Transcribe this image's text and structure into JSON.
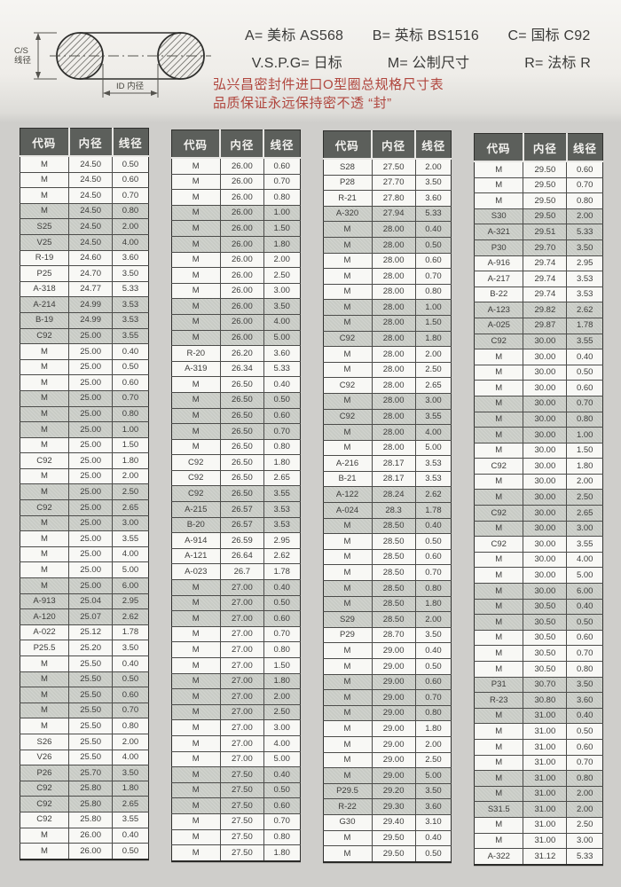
{
  "diagram": {
    "cs_label_line1": "C/S",
    "cs_label_line2": "线径",
    "id_label": "ID 内径"
  },
  "legend": {
    "items": [
      "A= 美标 AS568",
      "B= 英标 BS1516",
      "C= 国标 C92",
      "V.S.P.G= 日标",
      "M= 公制尺寸",
      "R= 法标 R"
    ]
  },
  "title": {
    "line1": "弘兴昌密封件进口O型圈总规格尺寸表",
    "line2": "品质保证永远保持密不透 “封”"
  },
  "colors": {
    "title_red": "#b0463e",
    "header_bg": "#5c5f5b",
    "shaded_row": "#c8cbc5"
  },
  "table": {
    "headers": [
      "代码",
      "内径",
      "线径"
    ],
    "columns": [
      {
        "rows": [
          [
            "M",
            "24.50",
            "0.50"
          ],
          [
            "M",
            "24.50",
            "0.60"
          ],
          [
            "M",
            "24.50",
            "0.70"
          ],
          [
            "M",
            "24.50",
            "0.80"
          ],
          [
            "S25",
            "24.50",
            "2.00"
          ],
          [
            "V25",
            "24.50",
            "4.00"
          ],
          [
            "R-19",
            "24.60",
            "3.60"
          ],
          [
            "P25",
            "24.70",
            "3.50"
          ],
          [
            "A-318",
            "24.77",
            "5.33"
          ],
          [
            "A-214",
            "24.99",
            "3.53"
          ],
          [
            "B-19",
            "24.99",
            "3.53"
          ],
          [
            "C92",
            "25.00",
            "3.55"
          ],
          [
            "M",
            "25.00",
            "0.40"
          ],
          [
            "M",
            "25.00",
            "0.50"
          ],
          [
            "M",
            "25.00",
            "0.60"
          ],
          [
            "M",
            "25.00",
            "0.70"
          ],
          [
            "M",
            "25.00",
            "0.80"
          ],
          [
            "M",
            "25.00",
            "1.00"
          ],
          [
            "M",
            "25.00",
            "1.50"
          ],
          [
            "C92",
            "25.00",
            "1.80"
          ],
          [
            "M",
            "25.00",
            "2.00"
          ],
          [
            "M",
            "25.00",
            "2.50"
          ],
          [
            "C92",
            "25.00",
            "2.65"
          ],
          [
            "M",
            "25.00",
            "3.00"
          ],
          [
            "M",
            "25.00",
            "3.55"
          ],
          [
            "M",
            "25.00",
            "4.00"
          ],
          [
            "M",
            "25.00",
            "5.00"
          ],
          [
            "M",
            "25.00",
            "6.00"
          ],
          [
            "A-913",
            "25.04",
            "2.95"
          ],
          [
            "A-120",
            "25.07",
            "2.62"
          ],
          [
            "A-022",
            "25.12",
            "1.78"
          ],
          [
            "P25.5",
            "25.20",
            "3.50"
          ],
          [
            "M",
            "25.50",
            "0.40"
          ],
          [
            "M",
            "25.50",
            "0.50"
          ],
          [
            "M",
            "25.50",
            "0.60"
          ],
          [
            "M",
            "25.50",
            "0.70"
          ],
          [
            "M",
            "25.50",
            "0.80"
          ],
          [
            "S26",
            "25.50",
            "2.00"
          ],
          [
            "V26",
            "25.50",
            "4.00"
          ],
          [
            "P26",
            "25.70",
            "3.50"
          ],
          [
            "C92",
            "25.80",
            "1.80"
          ],
          [
            "C92",
            "25.80",
            "2.65"
          ],
          [
            "C92",
            "25.80",
            "3.55"
          ],
          [
            "M",
            "26.00",
            "0.40"
          ],
          [
            "M",
            "26.00",
            "0.50"
          ]
        ]
      },
      {
        "rows": [
          [
            "M",
            "26.00",
            "0.60"
          ],
          [
            "M",
            "26.00",
            "0.70"
          ],
          [
            "M",
            "26.00",
            "0.80"
          ],
          [
            "M",
            "26.00",
            "1.00"
          ],
          [
            "M",
            "26.00",
            "1.50"
          ],
          [
            "M",
            "26.00",
            "1.80"
          ],
          [
            "M",
            "26.00",
            "2.00"
          ],
          [
            "M",
            "26.00",
            "2.50"
          ],
          [
            "M",
            "26.00",
            "3.00"
          ],
          [
            "M",
            "26.00",
            "3.50"
          ],
          [
            "M",
            "26.00",
            "4.00"
          ],
          [
            "M",
            "26.00",
            "5.00"
          ],
          [
            "R-20",
            "26.20",
            "3.60"
          ],
          [
            "A-319",
            "26.34",
            "5.33"
          ],
          [
            "M",
            "26.50",
            "0.40"
          ],
          [
            "M",
            "26.50",
            "0.50"
          ],
          [
            "M",
            "26.50",
            "0.60"
          ],
          [
            "M",
            "26.50",
            "0.70"
          ],
          [
            "M",
            "26.50",
            "0.80"
          ],
          [
            "C92",
            "26.50",
            "1.80"
          ],
          [
            "C92",
            "26.50",
            "2.65"
          ],
          [
            "C92",
            "26.50",
            "3.55"
          ],
          [
            "A-215",
            "26.57",
            "3.53"
          ],
          [
            "B-20",
            "26.57",
            "3.53"
          ],
          [
            "A-914",
            "26.59",
            "2.95"
          ],
          [
            "A-121",
            "26.64",
            "2.62"
          ],
          [
            "A-023",
            "26.7",
            "1.78"
          ],
          [
            "M",
            "27.00",
            "0.40"
          ],
          [
            "M",
            "27.00",
            "0.50"
          ],
          [
            "M",
            "27.00",
            "0.60"
          ],
          [
            "M",
            "27.00",
            "0.70"
          ],
          [
            "M",
            "27.00",
            "0.80"
          ],
          [
            "M",
            "27.00",
            "1.50"
          ],
          [
            "M",
            "27.00",
            "1.80"
          ],
          [
            "M",
            "27.00",
            "2.00"
          ],
          [
            "M",
            "27.00",
            "2.50"
          ],
          [
            "M",
            "27.00",
            "3.00"
          ],
          [
            "M",
            "27.00",
            "4.00"
          ],
          [
            "M",
            "27.00",
            "5.00"
          ],
          [
            "M",
            "27.50",
            "0.40"
          ],
          [
            "M",
            "27.50",
            "0.50"
          ],
          [
            "M",
            "27.50",
            "0.60"
          ],
          [
            "M",
            "27.50",
            "0.70"
          ],
          [
            "M",
            "27.50",
            "0.80"
          ],
          [
            "M",
            "27.50",
            "1.80"
          ]
        ]
      },
      {
        "rows": [
          [
            "S28",
            "27.50",
            "2.00"
          ],
          [
            "P28",
            "27.70",
            "3.50"
          ],
          [
            "R-21",
            "27.80",
            "3.60"
          ],
          [
            "A-320",
            "27.94",
            "5.33"
          ],
          [
            "M",
            "28.00",
            "0.40"
          ],
          [
            "M",
            "28.00",
            "0.50"
          ],
          [
            "M",
            "28.00",
            "0.60"
          ],
          [
            "M",
            "28.00",
            "0.70"
          ],
          [
            "M",
            "28.00",
            "0.80"
          ],
          [
            "M",
            "28.00",
            "1.00"
          ],
          [
            "M",
            "28.00",
            "1.50"
          ],
          [
            "C92",
            "28.00",
            "1.80"
          ],
          [
            "M",
            "28.00",
            "2.00"
          ],
          [
            "M",
            "28.00",
            "2.50"
          ],
          [
            "C92",
            "28.00",
            "2.65"
          ],
          [
            "M",
            "28.00",
            "3.00"
          ],
          [
            "C92",
            "28.00",
            "3.55"
          ],
          [
            "M",
            "28.00",
            "4.00"
          ],
          [
            "M",
            "28.00",
            "5.00"
          ],
          [
            "A-216",
            "28.17",
            "3.53"
          ],
          [
            "B-21",
            "28.17",
            "3.53"
          ],
          [
            "A-122",
            "28.24",
            "2.62"
          ],
          [
            "A-024",
            "28.3",
            "1.78"
          ],
          [
            "M",
            "28.50",
            "0.40"
          ],
          [
            "M",
            "28.50",
            "0.50"
          ],
          [
            "M",
            "28.50",
            "0.60"
          ],
          [
            "M",
            "28.50",
            "0.70"
          ],
          [
            "M",
            "28.50",
            "0.80"
          ],
          [
            "M",
            "28.50",
            "1.80"
          ],
          [
            "S29",
            "28.50",
            "2.00"
          ],
          [
            "P29",
            "28.70",
            "3.50"
          ],
          [
            "M",
            "29.00",
            "0.40"
          ],
          [
            "M",
            "29.00",
            "0.50"
          ],
          [
            "M",
            "29.00",
            "0.60"
          ],
          [
            "M",
            "29.00",
            "0.70"
          ],
          [
            "M",
            "29.00",
            "0.80"
          ],
          [
            "M",
            "29.00",
            "1.80"
          ],
          [
            "M",
            "29.00",
            "2.00"
          ],
          [
            "M",
            "29.00",
            "2.50"
          ],
          [
            "M",
            "29.00",
            "5.00"
          ],
          [
            "P29.5",
            "29.20",
            "3.50"
          ],
          [
            "R-22",
            "29.30",
            "3.60"
          ],
          [
            "G30",
            "29.40",
            "3.10"
          ],
          [
            "M",
            "29.50",
            "0.40"
          ],
          [
            "M",
            "29.50",
            "0.50"
          ]
        ]
      },
      {
        "rows": [
          [
            "M",
            "29.50",
            "0.60"
          ],
          [
            "M",
            "29.50",
            "0.70"
          ],
          [
            "M",
            "29.50",
            "0.80"
          ],
          [
            "S30",
            "29.50",
            "2.00"
          ],
          [
            "A-321",
            "29.51",
            "5.33"
          ],
          [
            "P30",
            "29.70",
            "3.50"
          ],
          [
            "A-916",
            "29.74",
            "2.95"
          ],
          [
            "A-217",
            "29.74",
            "3.53"
          ],
          [
            "B-22",
            "29.74",
            "3.53"
          ],
          [
            "A-123",
            "29.82",
            "2.62"
          ],
          [
            "A-025",
            "29.87",
            "1.78"
          ],
          [
            "C92",
            "30.00",
            "3.55"
          ],
          [
            "M",
            "30.00",
            "0.40"
          ],
          [
            "M",
            "30.00",
            "0.50"
          ],
          [
            "M",
            "30.00",
            "0.60"
          ],
          [
            "M",
            "30.00",
            "0.70"
          ],
          [
            "M",
            "30.00",
            "0.80"
          ],
          [
            "M",
            "30.00",
            "1.00"
          ],
          [
            "M",
            "30.00",
            "1.50"
          ],
          [
            "C92",
            "30.00",
            "1.80"
          ],
          [
            "M",
            "30.00",
            "2.00"
          ],
          [
            "M",
            "30.00",
            "2.50"
          ],
          [
            "C92",
            "30.00",
            "2.65"
          ],
          [
            "M",
            "30.00",
            "3.00"
          ],
          [
            "C92",
            "30.00",
            "3.55"
          ],
          [
            "M",
            "30.00",
            "4.00"
          ],
          [
            "M",
            "30.00",
            "5.00"
          ],
          [
            "M",
            "30.00",
            "6.00"
          ],
          [
            "M",
            "30.50",
            "0.40"
          ],
          [
            "M",
            "30.50",
            "0.50"
          ],
          [
            "M",
            "30.50",
            "0.60"
          ],
          [
            "M",
            "30.50",
            "0.70"
          ],
          [
            "M",
            "30.50",
            "0.80"
          ],
          [
            "P31",
            "30.70",
            "3.50"
          ],
          [
            "R-23",
            "30.80",
            "3.60"
          ],
          [
            "M",
            "31.00",
            "0.40"
          ],
          [
            "M",
            "31.00",
            "0.50"
          ],
          [
            "M",
            "31.00",
            "0.60"
          ],
          [
            "M",
            "31.00",
            "0.70"
          ],
          [
            "M",
            "31.00",
            "0.80"
          ],
          [
            "M",
            "31.00",
            "2.00"
          ],
          [
            "S31.5",
            "31.00",
            "2.00"
          ],
          [
            "M",
            "31.00",
            "2.50"
          ],
          [
            "M",
            "31.00",
            "3.00"
          ],
          [
            "A-322",
            "31.12",
            "5.33"
          ]
        ]
      }
    ]
  }
}
